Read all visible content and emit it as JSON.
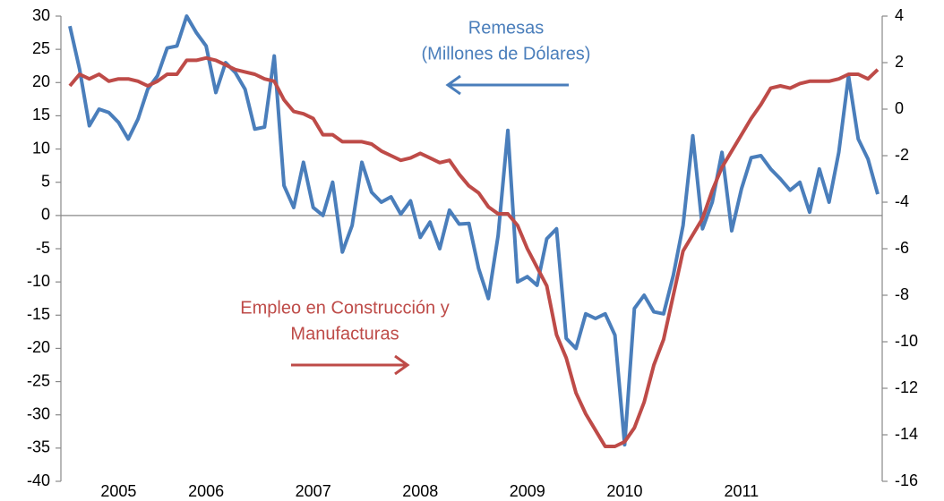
{
  "chart_data": {
    "type": "line",
    "categories": [
      null,
      null,
      null,
      null,
      null,
      "2005",
      null,
      null,
      null,
      null,
      null,
      null,
      null,
      null,
      "2006",
      null,
      null,
      null,
      null,
      null,
      null,
      null,
      null,
      null,
      null,
      "2007",
      null,
      null,
      null,
      null,
      null,
      null,
      null,
      null,
      null,
      null,
      "2008",
      null,
      null,
      null,
      null,
      null,
      null,
      null,
      null,
      null,
      null,
      "2009",
      null,
      null,
      null,
      null,
      null,
      null,
      null,
      null,
      null,
      "2010",
      null,
      null,
      null,
      null,
      null,
      null,
      null,
      null,
      null,
      null,
      null,
      "2011",
      null,
      null,
      null,
      null,
      null,
      null,
      null,
      null,
      null,
      null,
      null,
      null,
      null,
      null
    ],
    "series": [
      {
        "color": "#4a7ebb",
        "axis": "y",
        "values": [
          28.5,
          22,
          13.5,
          16,
          15.5,
          14,
          11.5,
          14.5,
          19,
          21,
          25.2,
          25.5,
          30,
          27.5,
          25.5,
          18.5,
          23,
          21.5,
          19,
          13,
          13.3,
          24,
          4.5,
          1.2,
          8,
          1.2,
          0,
          5,
          -5.5,
          -1.5,
          8,
          3.5,
          2,
          2.8,
          0.2,
          2.2,
          -3.3,
          -1,
          -5,
          0.8,
          -1.3,
          -1.2,
          -8,
          -12.5,
          -3,
          12.8,
          -10,
          -9.2,
          -10.5,
          -3.5,
          -2,
          -18.5,
          -20,
          -14.8,
          -15.5,
          -14.8,
          -18,
          -34.5,
          -14,
          -12,
          -14.5,
          -14.8,
          -9,
          -1.5,
          12,
          -2,
          2,
          9.5,
          -2.3,
          4,
          8.7,
          9,
          7,
          5.5,
          3.8,
          5,
          0.5,
          7,
          2,
          9.5,
          21,
          11.5,
          8.5,
          3.2
        ]
      },
      {
        "color": "#be4b48",
        "axis": "y2",
        "values": [
          1.0,
          1.5,
          1.3,
          1.5,
          1.2,
          1.3,
          1.3,
          1.2,
          1.0,
          1.2,
          1.5,
          1.5,
          2.1,
          2.1,
          2.2,
          2.1,
          1.9,
          1.7,
          1.6,
          1.5,
          1.3,
          1.2,
          0.4,
          -0.1,
          -0.2,
          -0.4,
          -1.1,
          -1.1,
          -1.4,
          -1.4,
          -1.4,
          -1.5,
          -1.8,
          -2.0,
          -2.2,
          -2.1,
          -1.9,
          -2.1,
          -2.3,
          -2.2,
          -2.8,
          -3.3,
          -3.6,
          -4.2,
          -4.5,
          -4.5,
          -5.0,
          -6.0,
          -6.8,
          -7.6,
          -9.7,
          -10.7,
          -12.2,
          -13.1,
          -13.8,
          -14.5,
          -14.5,
          -14.3,
          -13.7,
          -12.6,
          -11.0,
          -9.9,
          -8.0,
          -6.1,
          -5.4,
          -4.7,
          -3.5,
          -2.5,
          -1.8,
          -1.1,
          -0.4,
          0.2,
          0.9,
          1.0,
          0.9,
          1.1,
          1.2,
          1.2,
          1.2,
          1.3,
          1.5,
          1.5,
          1.3,
          1.7
        ]
      }
    ],
    "ylim": [
      -40,
      30
    ],
    "yticks": [
      30,
      25,
      20,
      15,
      10,
      5,
      0,
      -5,
      -10,
      -15,
      -20,
      -25,
      -30,
      -35,
      -40
    ],
    "y2lim": [
      -16,
      4
    ],
    "y2ticks": [
      4,
      2,
      0,
      -2,
      -4,
      -6,
      -8,
      -10,
      -12,
      -14,
      -16
    ],
    "annotations": [
      {
        "color": "#4a7ebb",
        "lines": [
          "Remesas",
          "(Millones de Dólares)"
        ]
      },
      {
        "color": "#be4b48",
        "lines": [
          "Empleo en Construcción y",
          "Manufacturas"
        ]
      }
    ]
  }
}
